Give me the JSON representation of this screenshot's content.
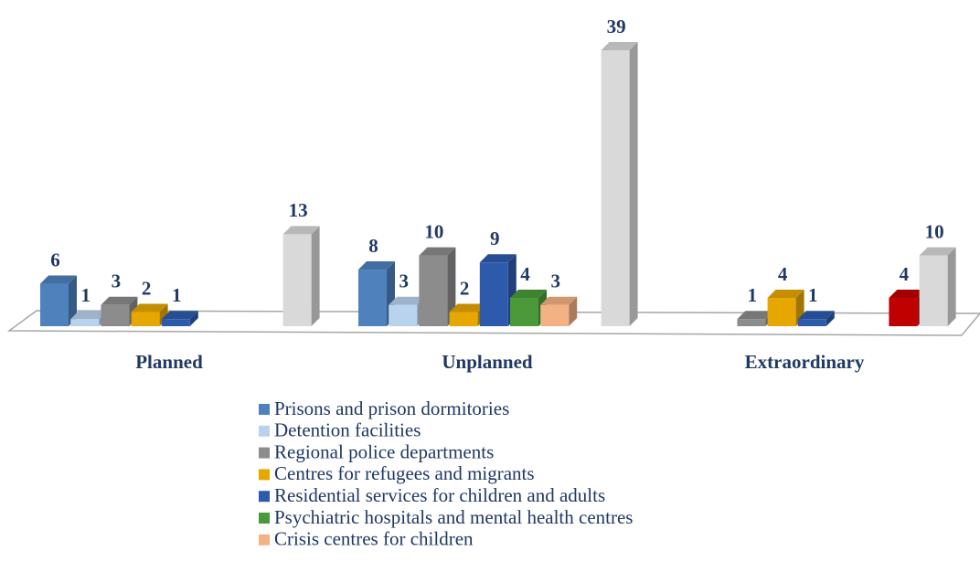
{
  "chart_data": {
    "type": "bar3d",
    "categories": [
      "Planned",
      "Unplanned",
      "Extraordinary"
    ],
    "series": [
      {
        "name": "Prisons and prison dormitories",
        "color": "#4f81bd",
        "values": [
          6,
          8,
          null
        ]
      },
      {
        "name": "Detention facilities",
        "color": "#b9d3ee",
        "values": [
          1,
          3,
          null
        ]
      },
      {
        "name": "Regional police departments",
        "color": "#8c8c8c",
        "values": [
          3,
          10,
          1
        ]
      },
      {
        "name": "Centres for refugees and migrants",
        "color": "#e6a700",
        "values": [
          2,
          2,
          4
        ]
      },
      {
        "name": "Residential services for children and adults",
        "color": "#2e5aac",
        "values": [
          1,
          9,
          1
        ]
      },
      {
        "name": "Psychiatric hospitals and mental health centres",
        "color": "#4a9a3a",
        "values": [
          null,
          4,
          null
        ]
      },
      {
        "name": "Crisis centres for children",
        "color": "#f4b183",
        "values": [
          null,
          3,
          null
        ]
      },
      {
        "color": "#c00000",
        "values": [
          null,
          null,
          4
        ]
      },
      {
        "color": "#d9d9d9",
        "values": [
          13,
          39,
          10
        ]
      }
    ]
  }
}
